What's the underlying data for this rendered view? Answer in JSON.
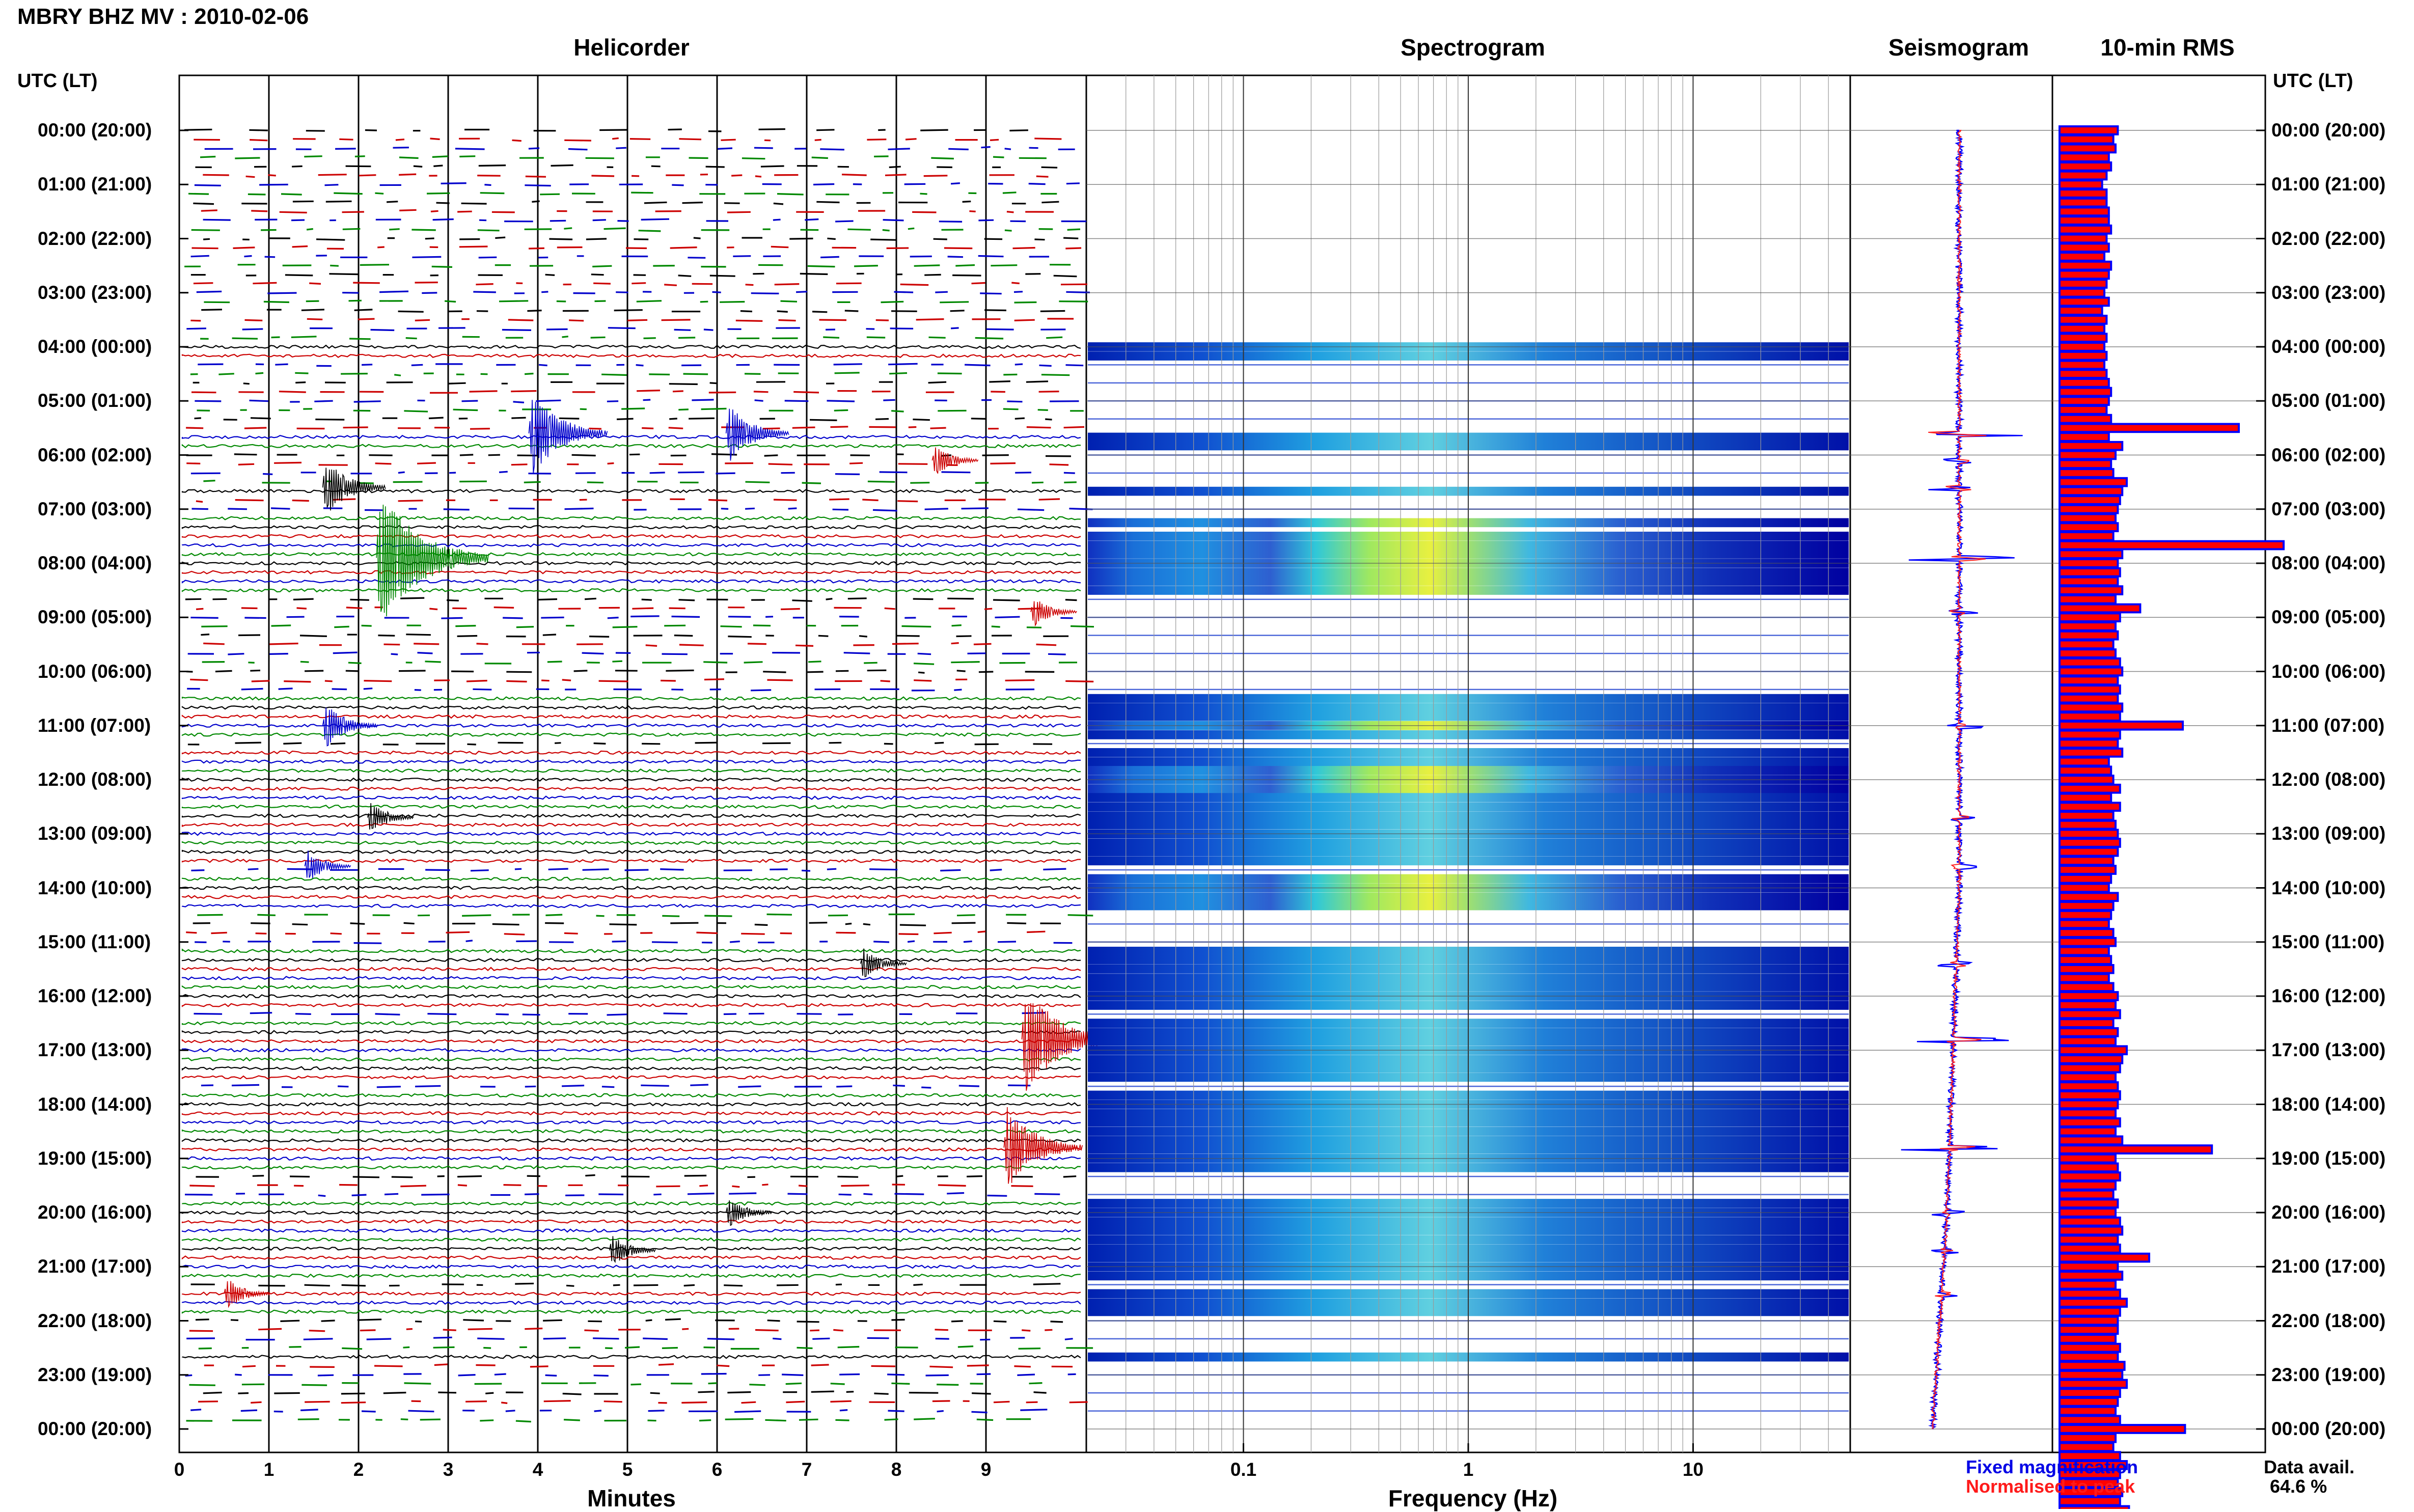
{
  "title": "MBRY BHZ MV : 2010-02-06",
  "headers": {
    "helicorder": "Helicorder",
    "spectrogram": "Spectrogram",
    "seismogram": "Seismogram",
    "rms": "10-min RMS"
  },
  "utc_label": "UTC (LT)",
  "x_axis": {
    "helicorder_label": "Minutes",
    "spectrogram_label": "Frequency (Hz)",
    "minutes_ticks": [
      "0",
      "1",
      "2",
      "3",
      "4",
      "5",
      "6",
      "7",
      "8",
      "9"
    ],
    "freq_ticks": [
      "0.1",
      "1",
      "10"
    ]
  },
  "legend": {
    "fixed": "Fixed magnification",
    "normalised": "Normalised to peak"
  },
  "data_availability": {
    "label": "Data avail.",
    "value": "64.6 %"
  },
  "colors": {
    "trace_palette": [
      "#000000",
      "#cc0000",
      "#0000cc",
      "#008800"
    ],
    "rms_fill": "#ff0000",
    "rms_edge": "#0000ff",
    "spectro_low": "#0000b4",
    "spectro_high": "#ffff00"
  },
  "chart_data": {
    "type": "heatmap",
    "time_ticks": [
      "00:00 (20:00)",
      "01:00 (21:00)",
      "02:00 (22:00)",
      "03:00 (23:00)",
      "04:00 (00:00)",
      "05:00 (01:00)",
      "06:00 (02:00)",
      "07:00 (03:00)",
      "08:00 (04:00)",
      "09:00 (05:00)",
      "10:00 (06:00)",
      "11:00 (07:00)",
      "12:00 (08:00)",
      "13:00 (09:00)",
      "14:00 (10:00)",
      "15:00 (11:00)",
      "16:00 (12:00)",
      "17:00 (13:00)",
      "18:00 (14:00)",
      "19:00 (15:00)",
      "20:00 (16:00)",
      "21:00 (17:00)",
      "22:00 (18:00)",
      "23:00 (19:00)",
      "00:00 (20:00)"
    ],
    "helicorder_xlim": [
      0,
      10
    ],
    "spectrogram_xlim_hz": [
      0.02,
      50
    ],
    "spectrogram_scale": "log",
    "events": [
      {
        "hour": 5.6,
        "minute": 3.9,
        "amplitude": 0.6
      },
      {
        "hour": 5.6,
        "minute": 6.1,
        "amplitude": 0.4
      },
      {
        "hour": 6.1,
        "minute": 8.4,
        "amplitude": 0.2
      },
      {
        "hour": 6.6,
        "minute": 1.6,
        "amplitude": 0.4
      },
      {
        "hour": 7.9,
        "minute": 2.2,
        "amplitude": 1.0
      },
      {
        "hour": 8.9,
        "minute": 9.5,
        "amplitude": 0.2
      },
      {
        "hour": 11.0,
        "minute": 1.6,
        "amplitude": 0.3
      },
      {
        "hour": 12.7,
        "minute": 2.1,
        "amplitude": 0.2
      },
      {
        "hour": 13.6,
        "minute": 1.4,
        "amplitude": 0.2
      },
      {
        "hour": 15.4,
        "minute": 7.6,
        "amplitude": 0.2
      },
      {
        "hour": 16.8,
        "minute": 9.4,
        "amplitude": 0.8
      },
      {
        "hour": 18.8,
        "minute": 9.2,
        "amplitude": 0.6
      },
      {
        "hour": 20.0,
        "minute": 6.1,
        "amplitude": 0.2
      },
      {
        "hour": 20.7,
        "minute": 4.8,
        "amplitude": 0.2
      },
      {
        "hour": 21.5,
        "minute": 0.5,
        "amplitude": 0.2
      }
    ],
    "spectrogram_active_rows": [
      4.0,
      4.17,
      5.67,
      5.83,
      6.67,
      7.25,
      7.5,
      7.67,
      7.83,
      8.0,
      8.17,
      8.33,
      8.5,
      10.5,
      10.67,
      10.83,
      11.0,
      11.17,
      11.5,
      11.67,
      11.83,
      12.0,
      12.17,
      12.33,
      12.5,
      12.67,
      12.83,
      13.0,
      13.17,
      13.33,
      13.5,
      13.83,
      14.0,
      14.17,
      14.33,
      15.17,
      15.33,
      15.5,
      15.67,
      15.83,
      16.0,
      16.17,
      16.5,
      16.67,
      16.83,
      17.0,
      17.17,
      17.33,
      17.5,
      17.83,
      18.0,
      18.17,
      18.33,
      18.5,
      18.67,
      18.83,
      19.0,
      19.17,
      19.83,
      20.0,
      20.17,
      20.33,
      20.5,
      20.67,
      20.83,
      21.0,
      21.17,
      21.5,
      21.67,
      21.83,
      22.67
    ],
    "rms_fixed": [
      0.26,
      0.24,
      0.25,
      0.22,
      0.23,
      0.21,
      0.19,
      0.21,
      0.21,
      0.22,
      0.22,
      0.23,
      0.21,
      0.22,
      0.2,
      0.23,
      0.22,
      0.21,
      0.2,
      0.22,
      0.19,
      0.21,
      0.2,
      0.21,
      0.2,
      0.21,
      0.2,
      0.21,
      0.22,
      0.23,
      0.22,
      0.21,
      0.23,
      0.8,
      0.22,
      0.28,
      0.25,
      0.23,
      0.24,
      0.3,
      0.28,
      0.27,
      0.26,
      0.25,
      0.26,
      0.24,
      1.0,
      0.28,
      0.26,
      0.27,
      0.26,
      0.28,
      0.25,
      0.36,
      0.27,
      0.25,
      0.26,
      0.24,
      0.25,
      0.27,
      0.28,
      0.26,
      0.27,
      0.26,
      0.28,
      0.27,
      0.55,
      0.27,
      0.26,
      0.28,
      0.22,
      0.23,
      0.24,
      0.27,
      0.23,
      0.27,
      0.24,
      0.25,
      0.26,
      0.27,
      0.26,
      0.24,
      0.25,
      0.23,
      0.22,
      0.26,
      0.24,
      0.23,
      0.22,
      0.24,
      0.25,
      0.22,
      0.23,
      0.24,
      0.22,
      0.24,
      0.26,
      0.25,
      0.27,
      0.24,
      0.26,
      0.25,
      0.3,
      0.28,
      0.27,
      0.25,
      0.26,
      0.27,
      0.26,
      0.25,
      0.27,
      0.25,
      0.28,
      0.68,
      0.25,
      0.26,
      0.27,
      0.25,
      0.24,
      0.26,
      0.25,
      0.27,
      0.28,
      0.26,
      0.27,
      0.4,
      0.26,
      0.28,
      0.25,
      0.27,
      0.3,
      0.27,
      0.26,
      0.26,
      0.25,
      0.27,
      0.26,
      0.29,
      0.28,
      0.3,
      0.27,
      0.26,
      0.25,
      0.27,
      0.56,
      0.25,
      0.24,
      0.27,
      0.3,
      0.27,
      0.26,
      0.28,
      0.27,
      0.31,
      0.25,
      0.24
    ]
  }
}
